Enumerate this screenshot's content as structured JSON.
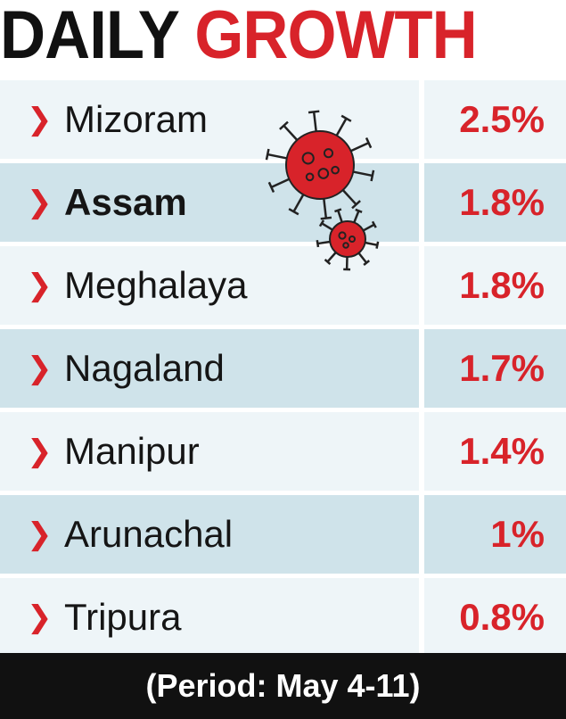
{
  "title": {
    "part1": "DAILY",
    "part2": "GROWTH"
  },
  "colors": {
    "accent_red": "#d8232a",
    "row_shade": "#cfe3ea",
    "row_light": "#eef5f8",
    "footer_bg": "#111111"
  },
  "icons": [
    "chevron-right-icon",
    "virus-icon"
  ],
  "chart_data": {
    "type": "table",
    "categories": [
      "Mizoram",
      "Assam",
      "Meghalaya",
      "Nagaland",
      "Manipur",
      "Arunachal",
      "Tripura"
    ],
    "values": [
      2.5,
      1.8,
      1.8,
      1.7,
      1.4,
      1,
      0.8
    ],
    "value_labels": [
      "2.5%",
      "1.8%",
      "1.8%",
      "1.7%",
      "1.4%",
      "1%",
      "0.8%"
    ],
    "bold_category": "Assam",
    "title": "DAILY GROWTH",
    "note": "(Period: May 4-11)"
  },
  "footer": {
    "text": "(Period: May 4-11)"
  }
}
